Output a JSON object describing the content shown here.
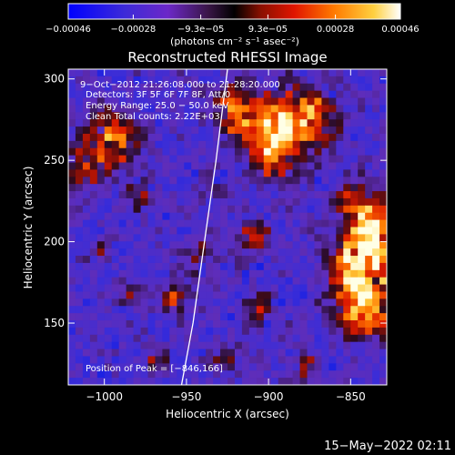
{
  "chart_data": {
    "type": "heatmap",
    "title": "Reconstructed RHESSI Image",
    "xlabel": "Heliocentric X (arcsec)",
    "ylabel": "Heliocentric Y (arcsec)",
    "xlim": [
      -1022,
      -828
    ],
    "ylim": [
      112,
      306
    ],
    "xticks": [
      {
        "value": -1000,
        "label": "−1000"
      },
      {
        "value": -950,
        "label": "−950"
      },
      {
        "value": -900,
        "label": "−900"
      },
      {
        "value": -850,
        "label": "−850"
      }
    ],
    "yticks": [
      {
        "value": 150,
        "label": "150"
      },
      {
        "value": 200,
        "label": "200"
      },
      {
        "value": 250,
        "label": "250"
      },
      {
        "value": 300,
        "label": "300"
      }
    ],
    "colorbar": {
      "min": -0.00046,
      "max": 0.00046,
      "ticks": [
        {
          "value": -0.00046,
          "label": "−0.00046"
        },
        {
          "value": -0.00028,
          "label": "−0.00028"
        },
        {
          "value": -9.3e-05,
          "label": "−9.3e−05"
        },
        {
          "value": 9.3e-05,
          "label": "9.3e−05"
        },
        {
          "value": 0.00028,
          "label": "0.00028"
        },
        {
          "value": 0.00046,
          "label": "0.00046"
        }
      ],
      "unit_label": "(photons cm⁻² s⁻¹ asec⁻²)"
    },
    "annotations": [
      "9−Oct−2012 21:26:08.000 to 21:28:20.000",
      "Detectors: 3F 5F 6F 7F 8F, Att/0",
      "Energy Range: 25.0 − 50.0 keV",
      "Clean     Total counts: 2.22E+03"
    ],
    "peak_label": "Position of Peak = [−846,166]",
    "peak": {
      "x": -846,
      "y": 166
    },
    "limb": [
      {
        "x": -953,
        "y": 112
      },
      {
        "x": -946,
        "y": 150
      },
      {
        "x": -939,
        "y": 200
      },
      {
        "x": -932,
        "y": 250
      },
      {
        "x": -925,
        "y": 306
      }
    ],
    "grid": false,
    "colormap": "rhessi-std-gamma"
  },
  "footer": {
    "timestamp": "15−May−2022 02:11"
  },
  "colors": {
    "background": "#000000",
    "text": "#ffffff",
    "limb_line": "#ffffff"
  }
}
